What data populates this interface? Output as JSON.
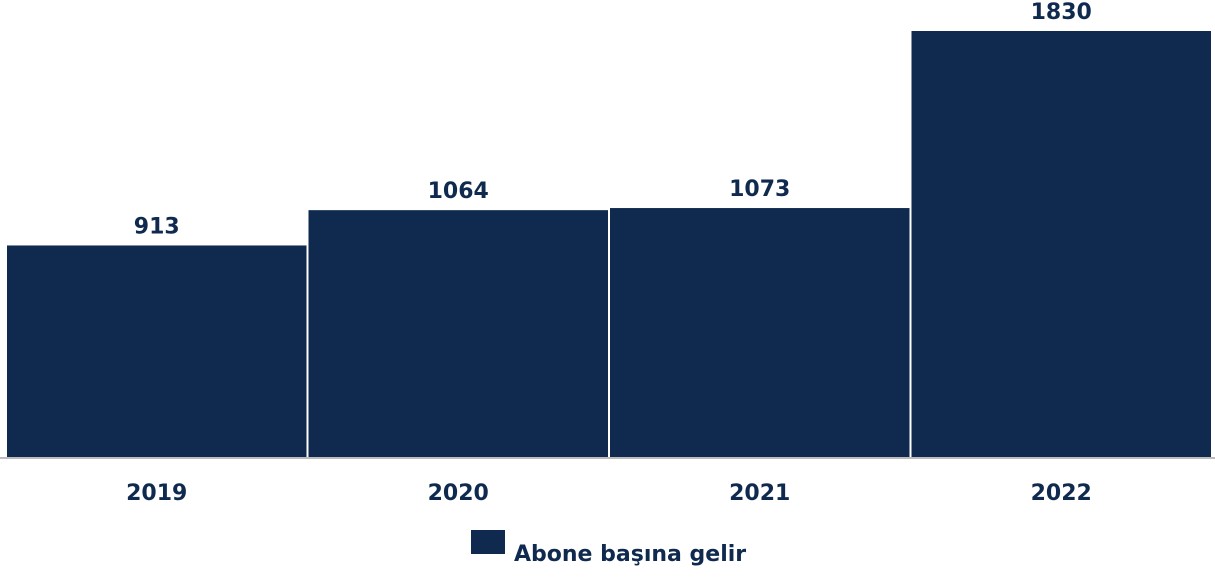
{
  "chart_data": {
    "type": "bar",
    "categories": [
      "2019",
      "2020",
      "2021",
      "2022"
    ],
    "series": [
      {
        "name": "Abone başına gelir",
        "values": [
          913,
          1064,
          1073,
          1830
        ]
      }
    ],
    "value_labels": [
      "913",
      "1064",
      "1073",
      "1830"
    ],
    "ylim": [
      0,
      1830
    ],
    "grid": false,
    "legend_position": "bottom-center",
    "bar_color": "#0f2a4e"
  },
  "legend": {
    "label": "Abone başına gelir",
    "color": "#0f2a4e"
  }
}
